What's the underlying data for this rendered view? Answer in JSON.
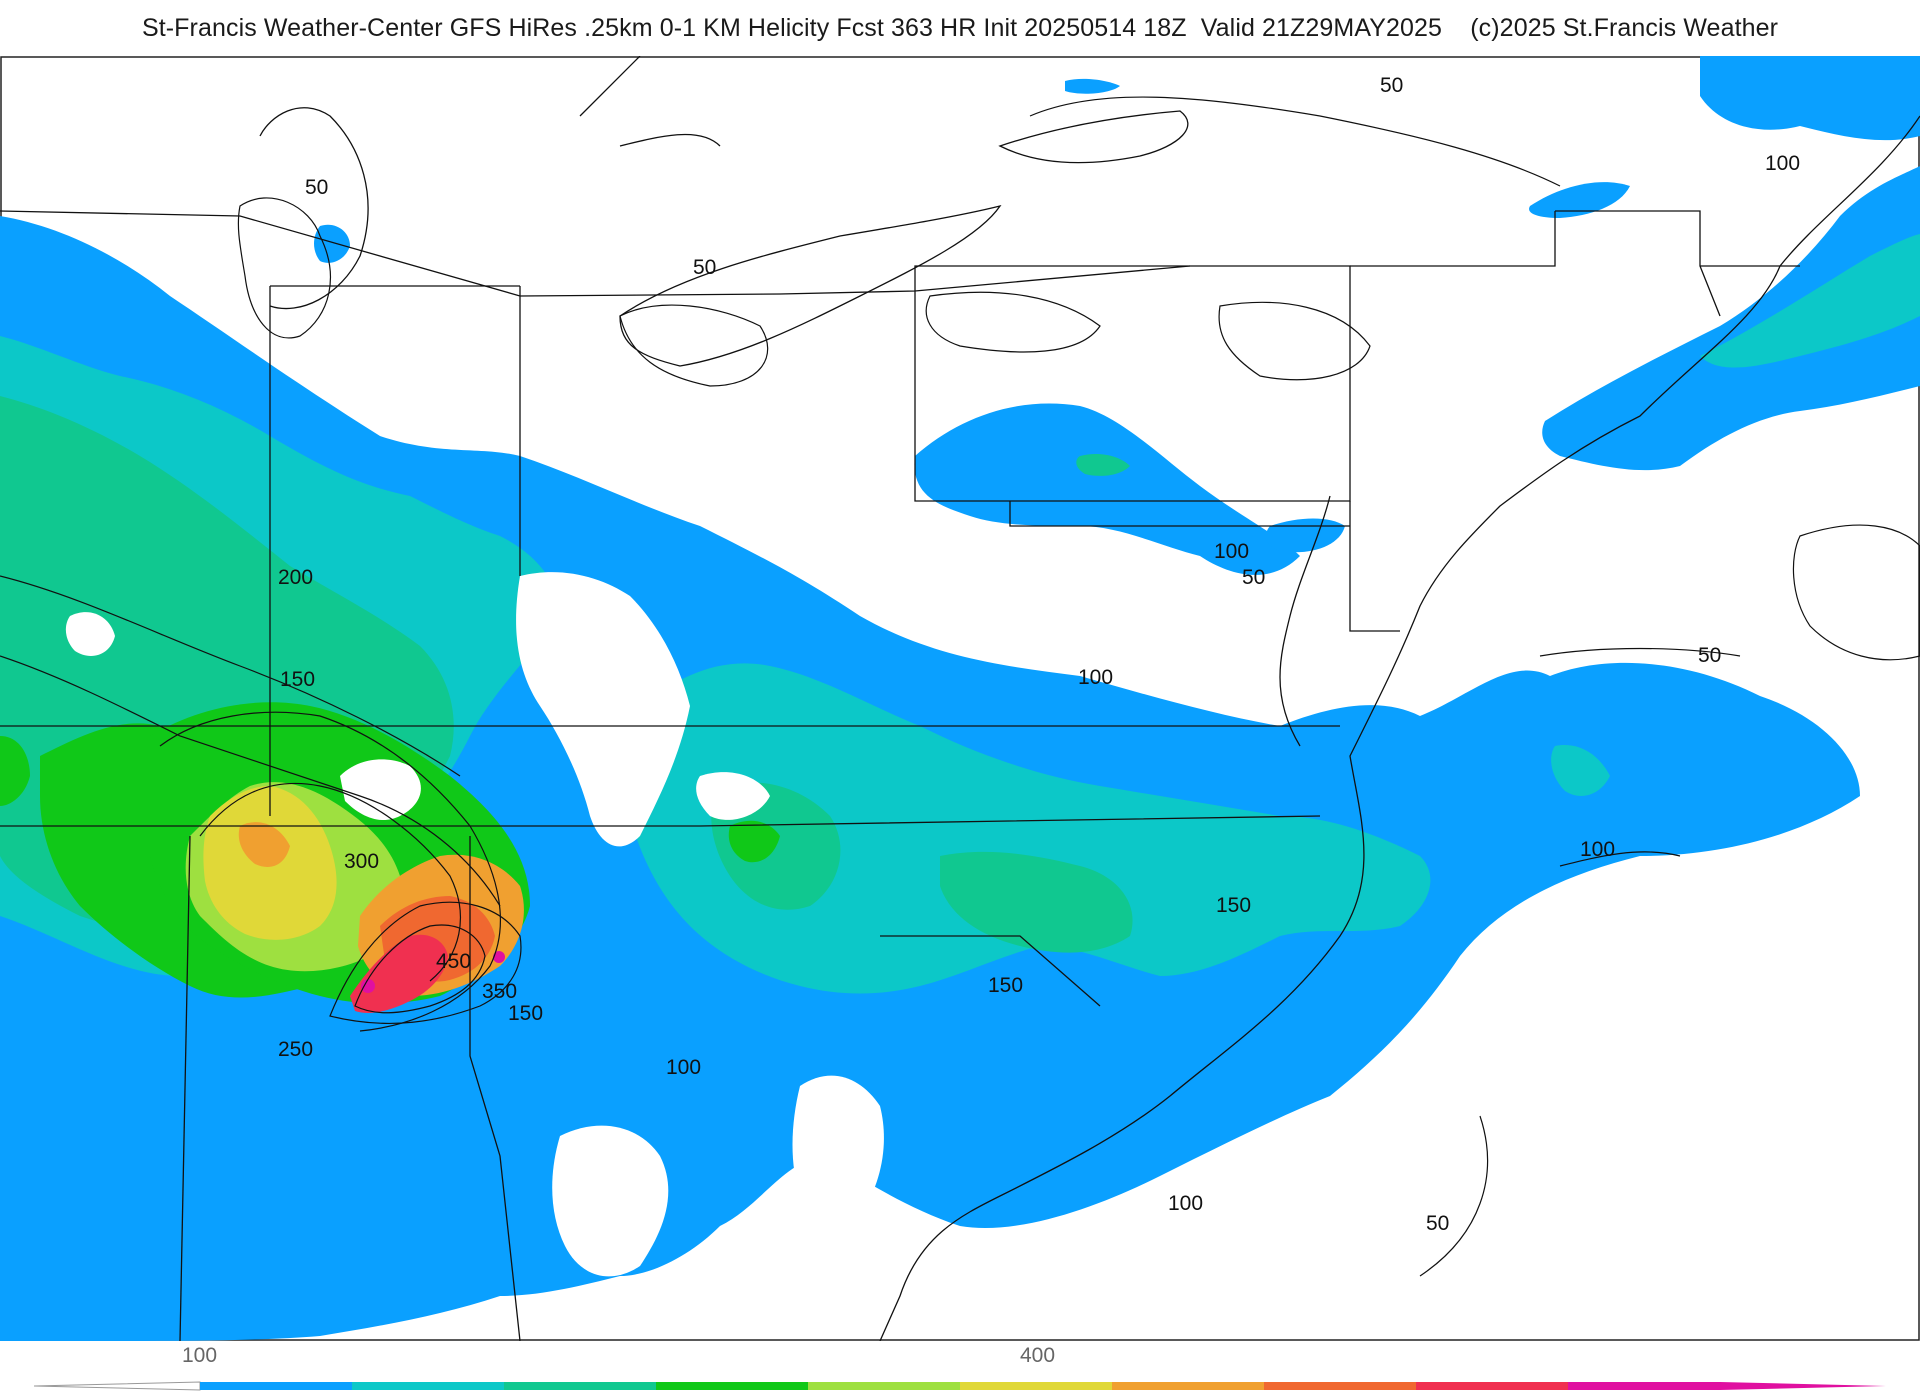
{
  "header": {
    "title": "St-Francis Weather-Center GFS HiRes .25km 0-1 KM Helicity Fcst 363 HR Init 20250514 18Z  Valid 21Z29MAY2025    (c)2025 St.Francis Weather"
  },
  "map": {
    "contour_labels": [
      {
        "id": "lbl-50-a",
        "text": "50"
      },
      {
        "id": "lbl-50-b",
        "text": "50"
      },
      {
        "id": "lbl-50-c",
        "text": "50"
      },
      {
        "id": "lbl-100-ne",
        "text": "100"
      },
      {
        "id": "lbl-200",
        "text": "200"
      },
      {
        "id": "lbl-150-w",
        "text": "150"
      },
      {
        "id": "lbl-300",
        "text": "300"
      },
      {
        "id": "lbl-450",
        "text": "450"
      },
      {
        "id": "lbl-350",
        "text": "350"
      },
      {
        "id": "lbl-150-c",
        "text": "150"
      },
      {
        "id": "lbl-250",
        "text": "250"
      },
      {
        "id": "lbl-100-s",
        "text": "100"
      },
      {
        "id": "lbl-100-dc",
        "text": "100"
      },
      {
        "id": "lbl-50-dc",
        "text": "50"
      },
      {
        "id": "lbl-100-va",
        "text": "100"
      },
      {
        "id": "lbl-50-atl",
        "text": "50"
      },
      {
        "id": "lbl-100-atl",
        "text": "100"
      },
      {
        "id": "lbl-150-nc",
        "text": "150"
      },
      {
        "id": "lbl-150-sc",
        "text": "150"
      },
      {
        "id": "lbl-100-se",
        "text": "100"
      },
      {
        "id": "lbl-50-se",
        "text": "50"
      }
    ],
    "colors": {
      "level_100": "#0aa0ff",
      "level_150": "#0cc8c8",
      "level_200": "#10c890",
      "level_250": "#10c818",
      "level_300": "#9ee040",
      "level_350": "#e0d838",
      "level_400": "#f0a030",
      "level_450": "#f06830",
      "level_500": "#f03050",
      "level_550": "#e010a0"
    }
  },
  "colorbar": {
    "tick_labels": [
      "100",
      "400"
    ],
    "segments": [
      "#0aa0ff",
      "#0cc8c8",
      "#10c890",
      "#10c818",
      "#9ee040",
      "#e0d838",
      "#f0a030",
      "#f06830",
      "#f03050",
      "#e010a0"
    ]
  }
}
